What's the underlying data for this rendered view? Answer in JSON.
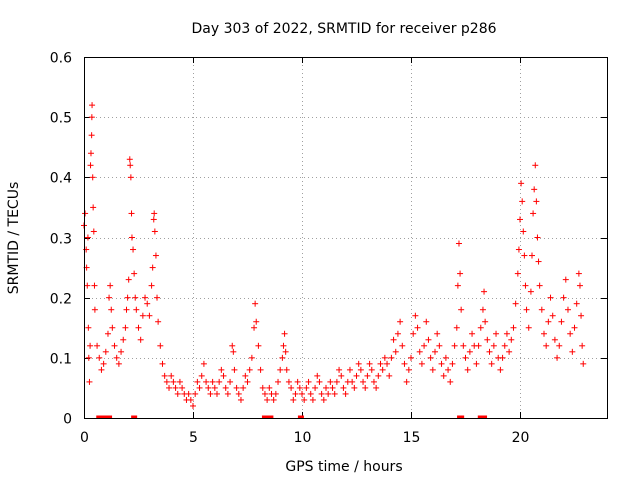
{
  "chart_data": {
    "type": "scatter",
    "title": "Day 303 of 2022, SRMTID for receiver p286",
    "xlabel": "GPS time / hours",
    "ylabel": "SRMTID / TECUs",
    "xlim": [
      0,
      23.99
    ],
    "ylim": [
      0,
      0.6
    ],
    "xticks": [
      "0",
      "5",
      "10",
      "15",
      "20"
    ],
    "yticks": [
      "0",
      "0.1",
      "0.2",
      "0.3",
      "0.4",
      "0.5",
      "0.6"
    ],
    "grid": true,
    "marker": "plus",
    "color": "#ff0000",
    "series": [
      {
        "name": "SRMTID",
        "points": [
          [
            0.0,
            0.32
          ],
          [
            0.05,
            0.34
          ],
          [
            0.1,
            0.28
          ],
          [
            0.12,
            0.25
          ],
          [
            0.15,
            0.22
          ],
          [
            0.18,
            0.3
          ],
          [
            0.2,
            0.15
          ],
          [
            0.22,
            0.1
          ],
          [
            0.25,
            0.06
          ],
          [
            0.28,
            0.12
          ],
          [
            0.3,
            0.42
          ],
          [
            0.32,
            0.44
          ],
          [
            0.35,
            0.47
          ],
          [
            0.36,
            0.5
          ],
          [
            0.37,
            0.52
          ],
          [
            0.4,
            0.4
          ],
          [
            0.42,
            0.35
          ],
          [
            0.45,
            0.31
          ],
          [
            0.48,
            0.22
          ],
          [
            0.5,
            0.18
          ],
          [
            0.6,
            0.12
          ],
          [
            0.7,
            0.1
          ],
          [
            0.8,
            0.08
          ],
          [
            0.9,
            0.09
          ],
          [
            1.0,
            0.11
          ],
          [
            1.1,
            0.14
          ],
          [
            1.15,
            0.2
          ],
          [
            1.2,
            0.22
          ],
          [
            1.25,
            0.18
          ],
          [
            1.3,
            0.15
          ],
          [
            1.4,
            0.12
          ],
          [
            1.5,
            0.1
          ],
          [
            1.6,
            0.09
          ],
          [
            1.7,
            0.11
          ],
          [
            1.8,
            0.13
          ],
          [
            1.9,
            0.15
          ],
          [
            1.95,
            0.18
          ],
          [
            2.0,
            0.2
          ],
          [
            2.05,
            0.23
          ],
          [
            2.1,
            0.43
          ],
          [
            2.12,
            0.42
          ],
          [
            2.15,
            0.4
          ],
          [
            2.18,
            0.34
          ],
          [
            2.2,
            0.3
          ],
          [
            2.25,
            0.28
          ],
          [
            2.3,
            0.24
          ],
          [
            2.35,
            0.2
          ],
          [
            2.4,
            0.18
          ],
          [
            2.5,
            0.15
          ],
          [
            2.6,
            0.13
          ],
          [
            2.7,
            0.17
          ],
          [
            2.8,
            0.2
          ],
          [
            2.9,
            0.19
          ],
          [
            3.0,
            0.17
          ],
          [
            3.1,
            0.22
          ],
          [
            3.15,
            0.25
          ],
          [
            3.2,
            0.33
          ],
          [
            3.22,
            0.34
          ],
          [
            3.25,
            0.31
          ],
          [
            3.3,
            0.27
          ],
          [
            3.35,
            0.2
          ],
          [
            3.4,
            0.16
          ],
          [
            3.5,
            0.12
          ],
          [
            3.6,
            0.09
          ],
          [
            3.7,
            0.07
          ],
          [
            3.8,
            0.06
          ],
          [
            3.9,
            0.05
          ],
          [
            4.0,
            0.07
          ],
          [
            4.1,
            0.06
          ],
          [
            4.2,
            0.05
          ],
          [
            4.3,
            0.04
          ],
          [
            4.4,
            0.06
          ],
          [
            4.5,
            0.05
          ],
          [
            4.6,
            0.04
          ],
          [
            4.7,
            0.03
          ],
          [
            4.8,
            0.04
          ],
          [
            4.9,
            0.03
          ],
          [
            5.0,
            0.02
          ],
          [
            5.1,
            0.04
          ],
          [
            5.2,
            0.06
          ],
          [
            5.3,
            0.05
          ],
          [
            5.4,
            0.07
          ],
          [
            5.5,
            0.09
          ],
          [
            5.6,
            0.06
          ],
          [
            5.7,
            0.05
          ],
          [
            5.8,
            0.04
          ],
          [
            5.9,
            0.06
          ],
          [
            6.0,
            0.05
          ],
          [
            6.1,
            0.04
          ],
          [
            6.2,
            0.06
          ],
          [
            6.3,
            0.08
          ],
          [
            6.4,
            0.07
          ],
          [
            6.5,
            0.05
          ],
          [
            6.6,
            0.04
          ],
          [
            6.7,
            0.06
          ],
          [
            6.8,
            0.12
          ],
          [
            6.85,
            0.11
          ],
          [
            6.9,
            0.08
          ],
          [
            7.0,
            0.05
          ],
          [
            7.1,
            0.04
          ],
          [
            7.2,
            0.03
          ],
          [
            7.3,
            0.05
          ],
          [
            7.4,
            0.07
          ],
          [
            7.5,
            0.06
          ],
          [
            7.6,
            0.08
          ],
          [
            7.7,
            0.1
          ],
          [
            7.8,
            0.15
          ],
          [
            7.85,
            0.19
          ],
          [
            7.9,
            0.16
          ],
          [
            8.0,
            0.12
          ],
          [
            8.1,
            0.08
          ],
          [
            8.2,
            0.05
          ],
          [
            8.3,
            0.04
          ],
          [
            8.4,
            0.03
          ],
          [
            8.5,
            0.05
          ],
          [
            8.6,
            0.04
          ],
          [
            8.7,
            0.03
          ],
          [
            8.8,
            0.04
          ],
          [
            8.9,
            0.06
          ],
          [
            9.0,
            0.08
          ],
          [
            9.1,
            0.1
          ],
          [
            9.15,
            0.12
          ],
          [
            9.2,
            0.14
          ],
          [
            9.25,
            0.11
          ],
          [
            9.3,
            0.08
          ],
          [
            9.4,
            0.06
          ],
          [
            9.5,
            0.05
          ],
          [
            9.6,
            0.03
          ],
          [
            9.7,
            0.04
          ],
          [
            9.8,
            0.06
          ],
          [
            9.9,
            0.05
          ],
          [
            10.0,
            0.04
          ],
          [
            10.1,
            0.03
          ],
          [
            10.2,
            0.05
          ],
          [
            10.3,
            0.06
          ],
          [
            10.4,
            0.04
          ],
          [
            10.5,
            0.03
          ],
          [
            10.6,
            0.05
          ],
          [
            10.7,
            0.07
          ],
          [
            10.8,
            0.06
          ],
          [
            10.9,
            0.04
          ],
          [
            11.0,
            0.03
          ],
          [
            11.1,
            0.05
          ],
          [
            11.2,
            0.04
          ],
          [
            11.3,
            0.06
          ],
          [
            11.4,
            0.05
          ],
          [
            11.5,
            0.04
          ],
          [
            11.6,
            0.06
          ],
          [
            11.7,
            0.08
          ],
          [
            11.8,
            0.07
          ],
          [
            11.9,
            0.05
          ],
          [
            12.0,
            0.04
          ],
          [
            12.1,
            0.06
          ],
          [
            12.2,
            0.08
          ],
          [
            12.3,
            0.06
          ],
          [
            12.4,
            0.05
          ],
          [
            12.5,
            0.07
          ],
          [
            12.6,
            0.09
          ],
          [
            12.7,
            0.08
          ],
          [
            12.8,
            0.06
          ],
          [
            12.9,
            0.05
          ],
          [
            13.0,
            0.07
          ],
          [
            13.1,
            0.09
          ],
          [
            13.2,
            0.08
          ],
          [
            13.3,
            0.06
          ],
          [
            13.4,
            0.05
          ],
          [
            13.5,
            0.07
          ],
          [
            13.6,
            0.09
          ],
          [
            13.7,
            0.08
          ],
          [
            13.8,
            0.1
          ],
          [
            13.9,
            0.09
          ],
          [
            14.0,
            0.07
          ],
          [
            14.1,
            0.1
          ],
          [
            14.2,
            0.13
          ],
          [
            14.3,
            0.11
          ],
          [
            14.4,
            0.14
          ],
          [
            14.5,
            0.16
          ],
          [
            14.6,
            0.12
          ],
          [
            14.7,
            0.09
          ],
          [
            14.8,
            0.06
          ],
          [
            14.9,
            0.08
          ],
          [
            15.0,
            0.1
          ],
          [
            15.1,
            0.14
          ],
          [
            15.2,
            0.17
          ],
          [
            15.3,
            0.15
          ],
          [
            15.4,
            0.11
          ],
          [
            15.5,
            0.09
          ],
          [
            15.6,
            0.12
          ],
          [
            15.7,
            0.16
          ],
          [
            15.8,
            0.13
          ],
          [
            15.9,
            0.1
          ],
          [
            16.0,
            0.08
          ],
          [
            16.1,
            0.11
          ],
          [
            16.2,
            0.14
          ],
          [
            16.3,
            0.12
          ],
          [
            16.4,
            0.09
          ],
          [
            16.5,
            0.07
          ],
          [
            16.6,
            0.1
          ],
          [
            16.7,
            0.08
          ],
          [
            16.8,
            0.06
          ],
          [
            16.9,
            0.09
          ],
          [
            17.0,
            0.12
          ],
          [
            17.1,
            0.15
          ],
          [
            17.15,
            0.22
          ],
          [
            17.2,
            0.29
          ],
          [
            17.25,
            0.24
          ],
          [
            17.3,
            0.18
          ],
          [
            17.4,
            0.12
          ],
          [
            17.5,
            0.1
          ],
          [
            17.6,
            0.08
          ],
          [
            17.7,
            0.11
          ],
          [
            17.8,
            0.14
          ],
          [
            17.9,
            0.12
          ],
          [
            18.0,
            0.09
          ],
          [
            18.1,
            0.12
          ],
          [
            18.2,
            0.15
          ],
          [
            18.3,
            0.18
          ],
          [
            18.35,
            0.21
          ],
          [
            18.4,
            0.16
          ],
          [
            18.5,
            0.13
          ],
          [
            18.6,
            0.11
          ],
          [
            18.7,
            0.09
          ],
          [
            18.8,
            0.12
          ],
          [
            18.9,
            0.14
          ],
          [
            19.0,
            0.1
          ],
          [
            19.1,
            0.08
          ],
          [
            19.2,
            0.1
          ],
          [
            19.3,
            0.12
          ],
          [
            19.4,
            0.14
          ],
          [
            19.5,
            0.11
          ],
          [
            19.6,
            0.13
          ],
          [
            19.7,
            0.15
          ],
          [
            19.8,
            0.19
          ],
          [
            19.9,
            0.24
          ],
          [
            19.95,
            0.28
          ],
          [
            20.0,
            0.33
          ],
          [
            20.05,
            0.39
          ],
          [
            20.1,
            0.36
          ],
          [
            20.15,
            0.31
          ],
          [
            20.2,
            0.27
          ],
          [
            20.25,
            0.22
          ],
          [
            20.3,
            0.18
          ],
          [
            20.4,
            0.15
          ],
          [
            20.5,
            0.21
          ],
          [
            20.55,
            0.27
          ],
          [
            20.6,
            0.34
          ],
          [
            20.65,
            0.38
          ],
          [
            20.7,
            0.42
          ],
          [
            20.75,
            0.36
          ],
          [
            20.8,
            0.3
          ],
          [
            20.85,
            0.26
          ],
          [
            20.9,
            0.22
          ],
          [
            21.0,
            0.18
          ],
          [
            21.1,
            0.14
          ],
          [
            21.2,
            0.12
          ],
          [
            21.3,
            0.16
          ],
          [
            21.4,
            0.2
          ],
          [
            21.5,
            0.17
          ],
          [
            21.6,
            0.13
          ],
          [
            21.7,
            0.1
          ],
          [
            21.8,
            0.12
          ],
          [
            21.9,
            0.16
          ],
          [
            22.0,
            0.2
          ],
          [
            22.1,
            0.23
          ],
          [
            22.2,
            0.18
          ],
          [
            22.3,
            0.14
          ],
          [
            22.4,
            0.11
          ],
          [
            22.5,
            0.15
          ],
          [
            22.6,
            0.19
          ],
          [
            22.7,
            0.24
          ],
          [
            22.75,
            0.22
          ],
          [
            22.8,
            0.17
          ],
          [
            22.85,
            0.12
          ],
          [
            22.9,
            0.09
          ]
        ],
        "zero_points": [
          0.7,
          0.85,
          0.95,
          1.05,
          1.15,
          2.3,
          8.3,
          8.35,
          8.4,
          8.45,
          8.5,
          8.55,
          9.95,
          17.25,
          17.3,
          18.2,
          18.25,
          18.3,
          18.35
        ]
      }
    ]
  }
}
